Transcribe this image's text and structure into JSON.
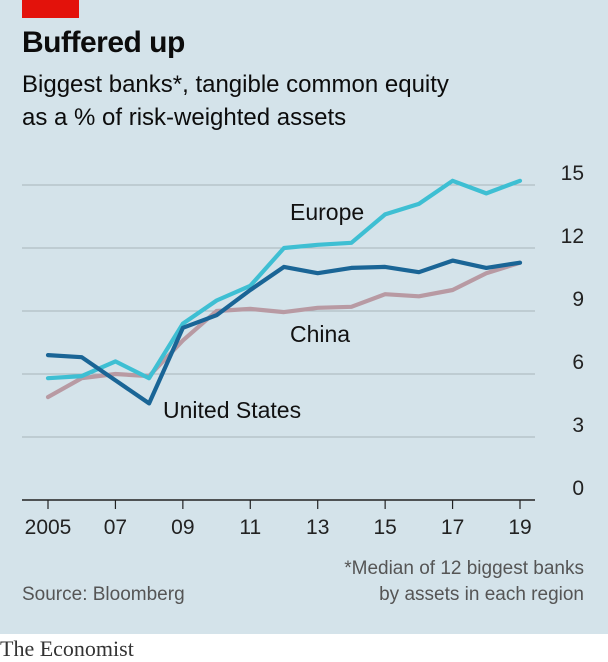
{
  "header": {
    "title": "Buffered up",
    "subtitle_line1": "Biggest banks*, tangible common equity",
    "subtitle_line2": "as a % of risk-weighted assets"
  },
  "footer": {
    "source": "Source: Bloomberg",
    "footnote_line1": "*Median of 12 biggest banks",
    "footnote_line2": "by assets in each region",
    "brand": "The Economist"
  },
  "colors": {
    "background": "#d4e3ea",
    "accent_red": "#e3120b",
    "europe": "#3ebfd3",
    "united_states": "#1a6596",
    "china": "#b89aa3",
    "gridline": "#a8b4bb"
  },
  "chart_data": {
    "type": "line",
    "x": [
      2005,
      2006,
      2007,
      2008,
      2009,
      2010,
      2011,
      2012,
      2013,
      2014,
      2015,
      2016,
      2017,
      2018,
      2019
    ],
    "x_tick_values": [
      2005,
      2007,
      2009,
      2011,
      2013,
      2015,
      2017,
      2019
    ],
    "x_tick_labels": [
      "2005",
      "07",
      "09",
      "11",
      "13",
      "15",
      "17",
      "19"
    ],
    "y_ticks": [
      0,
      3,
      6,
      9,
      12,
      15
    ],
    "ylim": [
      0,
      15
    ],
    "y_axis_side": "right",
    "grid": true,
    "series": [
      {
        "name": "Europe",
        "color": "#3ebfd3",
        "values": [
          5.8,
          5.9,
          6.6,
          5.8,
          8.4,
          9.5,
          10.2,
          12.0,
          12.15,
          12.25,
          13.6,
          14.1,
          15.2,
          14.6,
          15.2
        ]
      },
      {
        "name": "United States",
        "color": "#1a6596",
        "values": [
          6.9,
          6.8,
          5.7,
          4.6,
          8.2,
          8.8,
          10.0,
          11.1,
          10.8,
          11.05,
          11.1,
          10.85,
          11.4,
          11.05,
          11.3
        ]
      },
      {
        "name": "China",
        "color": "#b89aa3",
        "values": [
          4.9,
          5.8,
          6.0,
          5.9,
          7.6,
          9.0,
          9.1,
          8.95,
          9.15,
          9.2,
          9.8,
          9.7,
          10.0,
          10.8,
          11.3
        ]
      }
    ]
  }
}
